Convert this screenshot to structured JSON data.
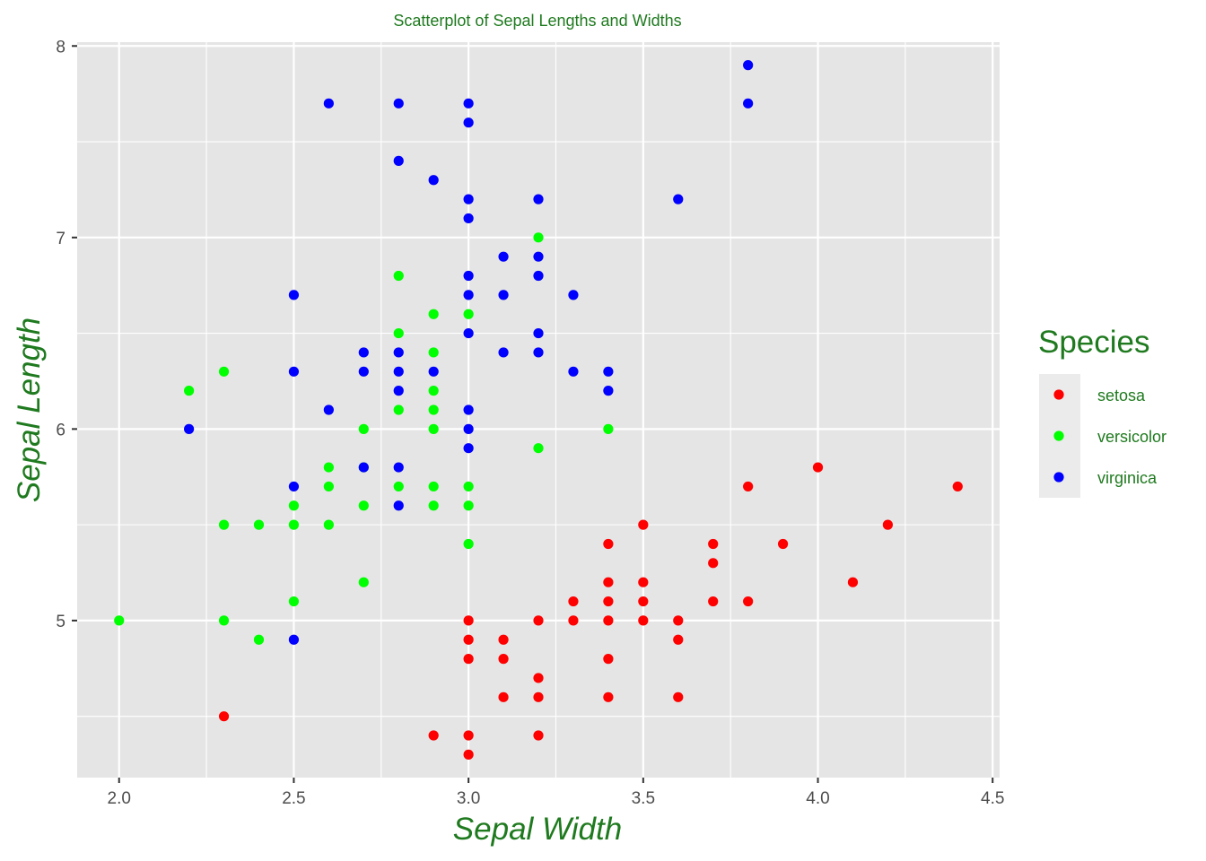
{
  "chart_data": {
    "type": "scatter",
    "title": "Scatterplot of Sepal Lengths and Widths",
    "xlabel": "Sepal Width",
    "ylabel": "Sepal Length",
    "xlim": [
      1.88,
      4.52
    ],
    "ylim": [
      4.18,
      8.02
    ],
    "x_ticks": [
      "2.0",
      "2.5",
      "3.0",
      "3.5",
      "4.0",
      "4.5"
    ],
    "y_ticks": [
      "5",
      "6",
      "7",
      "8"
    ],
    "grid": true,
    "legend": {
      "title": "Species",
      "position": "right"
    },
    "text_color": "#1f7a1f",
    "series": [
      {
        "name": "setosa",
        "color": "#ff0000",
        "points": [
          [
            2.3,
            4.5
          ],
          [
            2.9,
            4.4
          ],
          [
            3.0,
            4.4
          ],
          [
            3.0,
            4.3
          ],
          [
            3.2,
            4.4
          ],
          [
            3.0,
            5.0
          ],
          [
            3.0,
            4.9
          ],
          [
            3.0,
            4.8
          ],
          [
            3.1,
            4.9
          ],
          [
            3.1,
            4.8
          ],
          [
            3.1,
            4.6
          ],
          [
            3.2,
            5.0
          ],
          [
            3.2,
            4.7
          ],
          [
            3.2,
            4.6
          ],
          [
            3.3,
            5.1
          ],
          [
            3.3,
            5.0
          ],
          [
            3.4,
            5.4
          ],
          [
            3.4,
            5.2
          ],
          [
            3.4,
            5.1
          ],
          [
            3.4,
            5.0
          ],
          [
            3.4,
            4.8
          ],
          [
            3.4,
            4.6
          ],
          [
            3.5,
            5.5
          ],
          [
            3.5,
            5.2
          ],
          [
            3.5,
            5.1
          ],
          [
            3.5,
            5.0
          ],
          [
            3.6,
            5.0
          ],
          [
            3.6,
            4.9
          ],
          [
            3.6,
            4.6
          ],
          [
            3.7,
            5.4
          ],
          [
            3.7,
            5.3
          ],
          [
            3.7,
            5.1
          ],
          [
            3.8,
            5.7
          ],
          [
            3.8,
            5.1
          ],
          [
            3.9,
            5.4
          ],
          [
            4.0,
            5.8
          ],
          [
            4.1,
            5.2
          ],
          [
            4.2,
            5.5
          ],
          [
            4.4,
            5.7
          ]
        ]
      },
      {
        "name": "versicolor",
        "color": "#00ff00",
        "points": [
          [
            2.0,
            5.0
          ],
          [
            2.2,
            6.2
          ],
          [
            2.3,
            6.3
          ],
          [
            2.3,
            5.5
          ],
          [
            2.3,
            5.0
          ],
          [
            2.4,
            5.5
          ],
          [
            2.4,
            4.9
          ],
          [
            2.5,
            5.6
          ],
          [
            2.5,
            5.5
          ],
          [
            2.5,
            5.1
          ],
          [
            2.6,
            5.8
          ],
          [
            2.6,
            5.7
          ],
          [
            2.6,
            5.5
          ],
          [
            2.7,
            6.0
          ],
          [
            2.7,
            5.8
          ],
          [
            2.7,
            5.6
          ],
          [
            2.7,
            5.2
          ],
          [
            2.8,
            6.8
          ],
          [
            2.8,
            6.5
          ],
          [
            2.8,
            6.1
          ],
          [
            2.8,
            5.7
          ],
          [
            2.9,
            6.6
          ],
          [
            2.9,
            6.4
          ],
          [
            2.9,
            6.2
          ],
          [
            2.9,
            6.1
          ],
          [
            2.9,
            6.0
          ],
          [
            2.9,
            5.7
          ],
          [
            2.9,
            5.6
          ],
          [
            3.0,
            6.6
          ],
          [
            3.0,
            5.7
          ],
          [
            3.0,
            5.6
          ],
          [
            3.0,
            5.4
          ],
          [
            3.2,
            7.0
          ],
          [
            3.2,
            5.9
          ],
          [
            3.4,
            6.0
          ]
        ]
      },
      {
        "name": "virginica",
        "color": "#0000ff",
        "points": [
          [
            2.2,
            6.0
          ],
          [
            2.5,
            6.7
          ],
          [
            2.5,
            6.3
          ],
          [
            2.5,
            5.7
          ],
          [
            2.5,
            4.9
          ],
          [
            2.6,
            7.7
          ],
          [
            2.6,
            6.1
          ],
          [
            2.7,
            6.4
          ],
          [
            2.7,
            6.3
          ],
          [
            2.7,
            5.8
          ],
          [
            2.8,
            7.7
          ],
          [
            2.8,
            7.4
          ],
          [
            2.8,
            6.4
          ],
          [
            2.8,
            6.3
          ],
          [
            2.8,
            6.2
          ],
          [
            2.8,
            5.8
          ],
          [
            2.8,
            5.6
          ],
          [
            2.9,
            7.3
          ],
          [
            2.9,
            6.3
          ],
          [
            3.0,
            7.7
          ],
          [
            3.0,
            7.6
          ],
          [
            3.0,
            7.2
          ],
          [
            3.0,
            7.1
          ],
          [
            3.0,
            6.8
          ],
          [
            3.0,
            6.7
          ],
          [
            3.0,
            6.5
          ],
          [
            3.0,
            6.1
          ],
          [
            3.0,
            6.0
          ],
          [
            3.0,
            5.9
          ],
          [
            3.1,
            6.9
          ],
          [
            3.1,
            6.7
          ],
          [
            3.1,
            6.4
          ],
          [
            3.2,
            7.2
          ],
          [
            3.2,
            6.9
          ],
          [
            3.2,
            6.8
          ],
          [
            3.2,
            6.5
          ],
          [
            3.2,
            6.4
          ],
          [
            3.3,
            6.7
          ],
          [
            3.3,
            6.3
          ],
          [
            3.4,
            6.3
          ],
          [
            3.4,
            6.2
          ],
          [
            3.6,
            7.2
          ],
          [
            3.8,
            7.9
          ],
          [
            3.8,
            7.7
          ]
        ]
      }
    ]
  }
}
